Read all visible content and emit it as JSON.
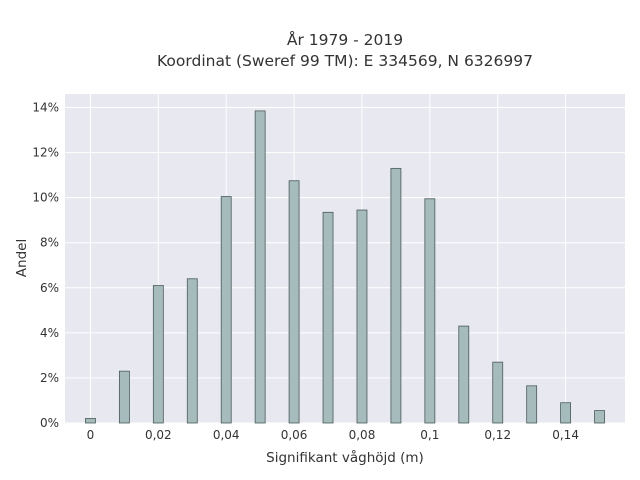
{
  "chart_data": {
    "type": "bar",
    "title_lines": [
      "År 1979 - 2019",
      "Koordinat (Sweref 99 TM): E 334569, N 6326997"
    ],
    "xlabel": "Signifikant våghöjd (m)",
    "ylabel": "Andel",
    "x": [
      0,
      0.01,
      0.02,
      0.03,
      0.04,
      0.05,
      0.06,
      0.07,
      0.08,
      0.09,
      0.1,
      0.11,
      0.12,
      0.13,
      0.14,
      0.15
    ],
    "values": [
      0.2,
      2.3,
      6.1,
      6.4,
      10.05,
      13.85,
      10.75,
      9.35,
      9.45,
      11.3,
      9.95,
      4.3,
      2.7,
      1.65,
      0.9,
      0.55
    ],
    "x_ticks": [
      0,
      0.02,
      0.04,
      0.06,
      0.08,
      0.1,
      0.12,
      0.14
    ],
    "x_tick_labels": [
      "0",
      "0,02",
      "0,04",
      "0,06",
      "0,08",
      "0,1",
      "0,12",
      "0,14"
    ],
    "y_ticks": [
      0,
      2,
      4,
      6,
      8,
      10,
      12,
      14
    ],
    "y_tick_labels": [
      "0%",
      "2%",
      "4%",
      "6%",
      "8%",
      "10%",
      "12%",
      "14%"
    ],
    "xlim": [
      -0.0075,
      0.1575
    ],
    "ylim": [
      0,
      14.6
    ],
    "grid": true,
    "colors": {
      "bar_fill": "#a5bbbc",
      "bar_edge": "#4a5a5a",
      "plot_bg": "#e8e8f0",
      "grid": "#ffffff"
    }
  }
}
